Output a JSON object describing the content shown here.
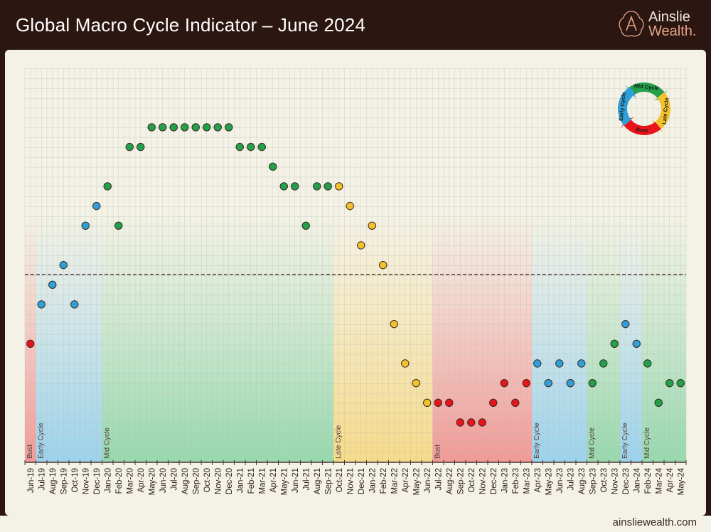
{
  "header": {
    "title": "Global Macro Cycle Indicator – June 2024"
  },
  "logo": {
    "line1": "Ainslie",
    "line2": "Wealth."
  },
  "footer": {
    "site": "ainsliewealth.com"
  },
  "colors": {
    "Bust": "#e8141c",
    "Early Cycle": "#2f9fd8",
    "Mid Cycle": "#23a04a",
    "Late Cycle": "#f2c12e"
  },
  "band_colors": {
    "Bust": "#f08a8a",
    "Early Cycle": "#8ccdee",
    "Mid Cycle": "#86d4a4",
    "Late Cycle": "#f7d67a"
  },
  "cycle_wheel": [
    "Mid Cycle",
    "Late Cycle",
    "Bust",
    "Early Cycle"
  ],
  "chart_data": {
    "type": "scatter",
    "title": "Global Macro Cycle Indicator – June 2024",
    "xlabel": "",
    "ylabel": "",
    "y_axis_labels": "none",
    "grid": true,
    "reference_line": {
      "y": 7.5,
      "style": "dashed"
    },
    "ylim": [
      0,
      15
    ],
    "categories": [
      "Jun-19",
      "Jul-19",
      "Aug-19",
      "Sep-19",
      "Oct-19",
      "Nov-19",
      "Dec-19",
      "Jan-20",
      "Feb-20",
      "Mar-20",
      "Apr-20",
      "May-20",
      "Jun-20",
      "Jul-20",
      "Aug-20",
      "Sep-20",
      "Oct-20",
      "Nov-20",
      "Dec-20",
      "Jan-21",
      "Feb-21",
      "Mar-21",
      "Apr-21",
      "May-21",
      "Jun-21",
      "Jul-21",
      "Aug-21",
      "Sep-21",
      "Oct-21",
      "Nov-21",
      "Dec-21",
      "Jan-22",
      "Feb-22",
      "Mar-22",
      "Apr-22",
      "May-22",
      "Jun-22",
      "Jul-22",
      "Aug-22",
      "Sep-22",
      "Oct-22",
      "Nov-22",
      "Dec-22",
      "Jan-23",
      "Feb-23",
      "Mar-23",
      "Apr-23",
      "May-23",
      "Jun-23",
      "Jul-23",
      "Aug-23",
      "Sep-23",
      "Oct-23",
      "Nov-23",
      "Dec-23",
      "Jan-24",
      "Feb-24",
      "Mar-24",
      "Apr-24",
      "May-24"
    ],
    "values": [
      4,
      6,
      7,
      8,
      6,
      10,
      11,
      12,
      10,
      14,
      14,
      15,
      15,
      15,
      15,
      15,
      15,
      15,
      15,
      14,
      14,
      14,
      13,
      12,
      12,
      10,
      12,
      12,
      12,
      11,
      9,
      10,
      8,
      5,
      3,
      2,
      1,
      1,
      1,
      0,
      0,
      0,
      1,
      2,
      1,
      2,
      3,
      2,
      3,
      2,
      3,
      2,
      3,
      4,
      5,
      4,
      3,
      1,
      2,
      2
    ],
    "phases": [
      "Bust",
      "Early Cycle",
      "Early Cycle",
      "Early Cycle",
      "Early Cycle",
      "Early Cycle",
      "Early Cycle",
      "Mid Cycle",
      "Mid Cycle",
      "Mid Cycle",
      "Mid Cycle",
      "Mid Cycle",
      "Mid Cycle",
      "Mid Cycle",
      "Mid Cycle",
      "Mid Cycle",
      "Mid Cycle",
      "Mid Cycle",
      "Mid Cycle",
      "Mid Cycle",
      "Mid Cycle",
      "Mid Cycle",
      "Mid Cycle",
      "Mid Cycle",
      "Mid Cycle",
      "Mid Cycle",
      "Mid Cycle",
      "Mid Cycle",
      "Late Cycle",
      "Late Cycle",
      "Late Cycle",
      "Late Cycle",
      "Late Cycle",
      "Late Cycle",
      "Late Cycle",
      "Late Cycle",
      "Late Cycle",
      "Bust",
      "Bust",
      "Bust",
      "Bust",
      "Bust",
      "Bust",
      "Bust",
      "Bust",
      "Bust",
      "Early Cycle",
      "Early Cycle",
      "Early Cycle",
      "Early Cycle",
      "Early Cycle",
      "Mid Cycle",
      "Mid Cycle",
      "Mid Cycle",
      "Early Cycle",
      "Early Cycle",
      "Mid Cycle",
      "Mid Cycle",
      "Mid Cycle",
      "Mid Cycle"
    ],
    "bands": [
      {
        "label": "Bust",
        "start": "Jun-19",
        "end": "Jun-19"
      },
      {
        "label": "Early Cycle",
        "start": "Jul-19",
        "end": "Dec-19"
      },
      {
        "label": "Mid Cycle",
        "start": "Jan-20",
        "end": "Sep-21"
      },
      {
        "label": "Late Cycle",
        "start": "Oct-21",
        "end": "Jun-22"
      },
      {
        "label": "Bust",
        "start": "Jul-22",
        "end": "Mar-23"
      },
      {
        "label": "Early Cycle",
        "start": "Apr-23",
        "end": "Aug-23"
      },
      {
        "label": "Mid Cycle",
        "start": "Sep-23",
        "end": "Nov-23"
      },
      {
        "label": "Early Cycle",
        "start": "Dec-23",
        "end": "Jan-24"
      },
      {
        "label": "Mid Cycle",
        "start": "Feb-24",
        "end": "May-24"
      }
    ]
  }
}
